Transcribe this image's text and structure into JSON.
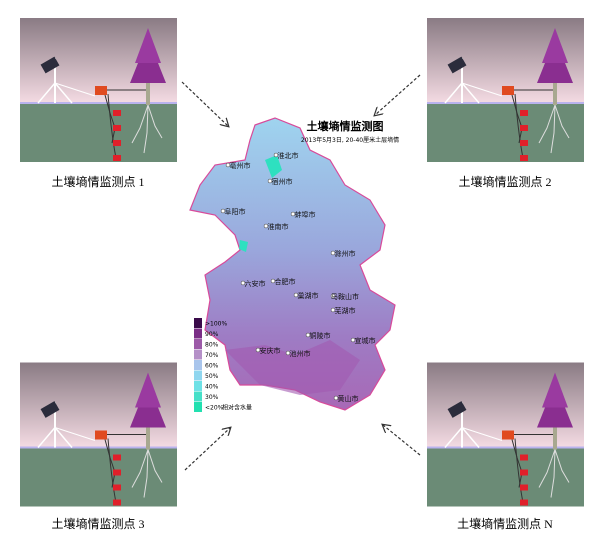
{
  "stations": [
    {
      "label": "土壤墒情监测点 1"
    },
    {
      "label": "土壤墒情监测点 2"
    },
    {
      "label": "土壤墒情监测点 3"
    },
    {
      "label": "土壤墒情监测点 N"
    }
  ],
  "map": {
    "title": "土壤墒情监测图",
    "subtitle": "2013年5月3日, 20-40厘米土层墒情",
    "cities": [
      "淮北市",
      "宿州市",
      "亳州市",
      "阜阳市",
      "淮南市",
      "蚌埠市",
      "滁州市",
      "六安市",
      "合肥市",
      "巢湖市",
      "马鞍山市",
      "芜湖市",
      "安庆市",
      "池州市",
      "铜陵市",
      "宣城市",
      "黄山市"
    ],
    "legend": {
      "items": [
        ">100%",
        "90%",
        "80%",
        "70%",
        "60%",
        "50%",
        "40%",
        "30%",
        "<20%"
      ],
      "caption": "相对含水量"
    }
  }
}
